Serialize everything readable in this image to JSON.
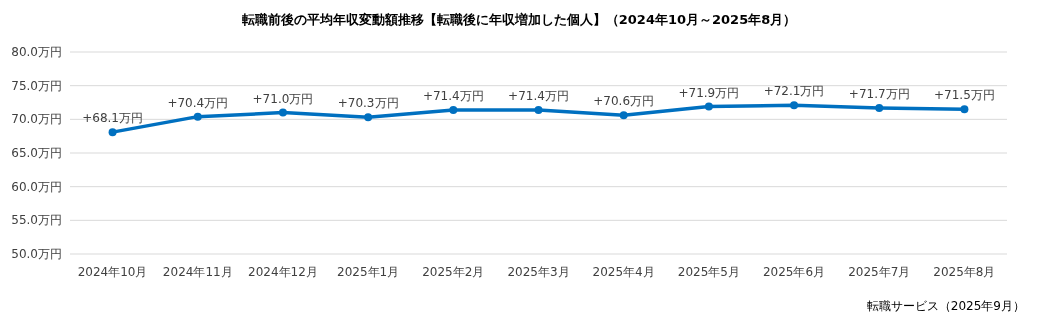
{
  "chart_data": {
    "type": "line",
    "title": "転職前後の平均年収変動額推移【転職後に年収増加した個人】（2024年10月～2025年8月）",
    "categories": [
      "2024年10月",
      "2024年11月",
      "2024年12月",
      "2025年1月",
      "2025年2月",
      "2025年3月",
      "2025年4月",
      "2025年5月",
      "2025年6月",
      "2025年7月",
      "2025年8月"
    ],
    "values": [
      68.1,
      70.4,
      71.0,
      70.3,
      71.4,
      71.4,
      70.6,
      71.9,
      72.1,
      71.7,
      71.5
    ],
    "value_labels": [
      "+68.1万円",
      "+70.4万円",
      "+71.0万円",
      "+70.3万円",
      "+71.4万円",
      "+71.4万円",
      "+70.6万円",
      "+71.9万円",
      "+72.1万円",
      "+71.7万円",
      "+71.5万円"
    ],
    "color": "#0070c0",
    "marker": "circle",
    "grid": "y",
    "ylim": [
      50,
      80
    ],
    "yticks": [
      {
        "value": 50,
        "label": "50.0万円"
      },
      {
        "value": 55,
        "label": "55.0万円"
      },
      {
        "value": 60,
        "label": "60.0万円"
      },
      {
        "value": 65,
        "label": "65.0万円"
      },
      {
        "value": 70,
        "label": "70.0万円"
      },
      {
        "value": 75,
        "label": "75.0万円"
      },
      {
        "value": 80,
        "label": "80.0万円"
      }
    ],
    "annotations": [
      "転職サービス（2025年9月）"
    ]
  }
}
